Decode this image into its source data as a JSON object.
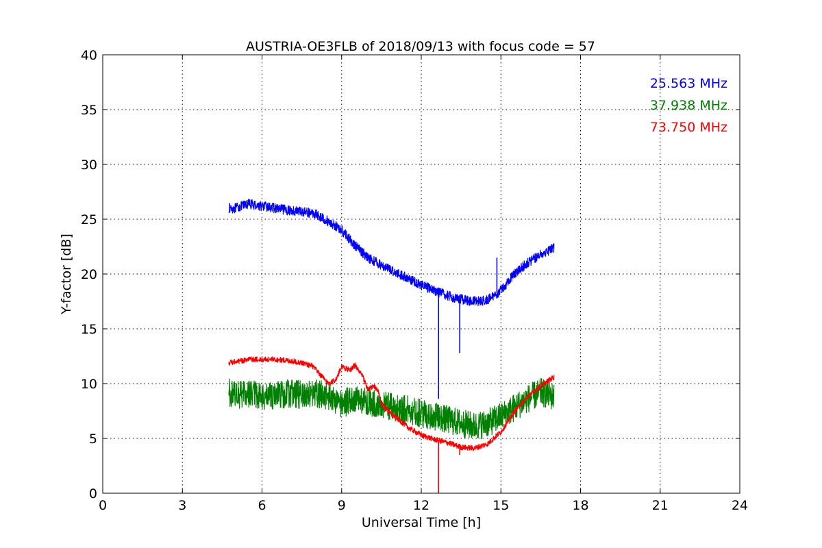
{
  "chart_data": {
    "type": "line",
    "title": "AUSTRIA-OE3FLB of 2018/09/13 with focus code = 57",
    "xlabel": "Universal Time [h]",
    "ylabel": "Y-factor [dB]",
    "xlim": [
      0,
      24
    ],
    "ylim": [
      0,
      40
    ],
    "xticks": [
      0,
      3,
      6,
      9,
      12,
      15,
      18,
      21,
      24
    ],
    "yticks": [
      0,
      5,
      10,
      15,
      20,
      25,
      30,
      35,
      40
    ],
    "grid": true,
    "legend_placement": "top-right",
    "series": [
      {
        "name": "25.563 MHz",
        "color": "#0000ff",
        "noise_amplitude": 0.45,
        "x": [
          4.75,
          5.0,
          5.5,
          6.0,
          6.5,
          7.0,
          7.5,
          8.0,
          8.5,
          9.0,
          9.5,
          10.0,
          10.5,
          11.0,
          11.5,
          12.0,
          12.5,
          13.0,
          13.5,
          14.0,
          14.5,
          15.0,
          15.5,
          16.0,
          16.5,
          17.0
        ],
        "values": [
          26.0,
          26.0,
          26.4,
          26.2,
          26.0,
          25.8,
          25.7,
          25.5,
          24.8,
          24.0,
          22.6,
          21.5,
          20.8,
          20.2,
          19.6,
          19.0,
          18.5,
          18.0,
          17.7,
          17.5,
          17.6,
          18.5,
          20.0,
          21.0,
          21.8,
          22.4
        ],
        "spikes": [
          {
            "x": 12.65,
            "y": 8.6
          },
          {
            "x": 13.45,
            "y": 12.8
          },
          {
            "x": 14.85,
            "y": 21.5
          }
        ]
      },
      {
        "name": "37.938 MHz",
        "color": "#008000",
        "noise_amplitude": 1.3,
        "x": [
          4.75,
          5.0,
          5.5,
          6.0,
          6.5,
          7.0,
          7.5,
          8.0,
          8.5,
          9.0,
          9.5,
          10.0,
          10.5,
          11.0,
          11.5,
          12.0,
          12.5,
          13.0,
          13.5,
          14.0,
          14.5,
          15.0,
          15.5,
          16.0,
          16.5,
          17.0
        ],
        "values": [
          9.2,
          9.0,
          9.1,
          8.8,
          9.0,
          9.1,
          9.0,
          9.2,
          8.8,
          8.2,
          8.5,
          8.4,
          8.0,
          7.8,
          7.6,
          7.3,
          7.0,
          6.7,
          6.4,
          6.1,
          6.4,
          7.0,
          7.8,
          8.6,
          9.2,
          8.8
        ],
        "spikes": []
      },
      {
        "name": "73.750 MHz",
        "color": "#ff0000",
        "noise_amplitude": 0.25,
        "x": [
          4.75,
          5.0,
          5.5,
          6.0,
          6.5,
          7.0,
          7.5,
          7.9,
          8.2,
          8.5,
          8.8,
          9.0,
          9.3,
          9.5,
          9.8,
          10.0,
          10.2,
          10.4,
          10.5,
          11.0,
          11.5,
          12.0,
          12.5,
          13.0,
          13.5,
          14.0,
          14.5,
          15.0,
          15.5,
          16.0,
          16.5,
          17.0
        ],
        "values": [
          11.9,
          12.0,
          12.2,
          12.2,
          12.2,
          12.1,
          11.9,
          11.6,
          10.8,
          10.0,
          10.4,
          11.6,
          11.2,
          11.7,
          10.6,
          9.4,
          9.8,
          9.2,
          8.1,
          7.0,
          6.0,
          5.3,
          4.9,
          4.6,
          4.2,
          4.1,
          4.5,
          5.6,
          7.4,
          8.8,
          9.8,
          10.6
        ],
        "spikes": [
          {
            "x": 12.65,
            "y": 0.0
          },
          {
            "x": 13.45,
            "y": 3.5
          }
        ]
      }
    ]
  }
}
